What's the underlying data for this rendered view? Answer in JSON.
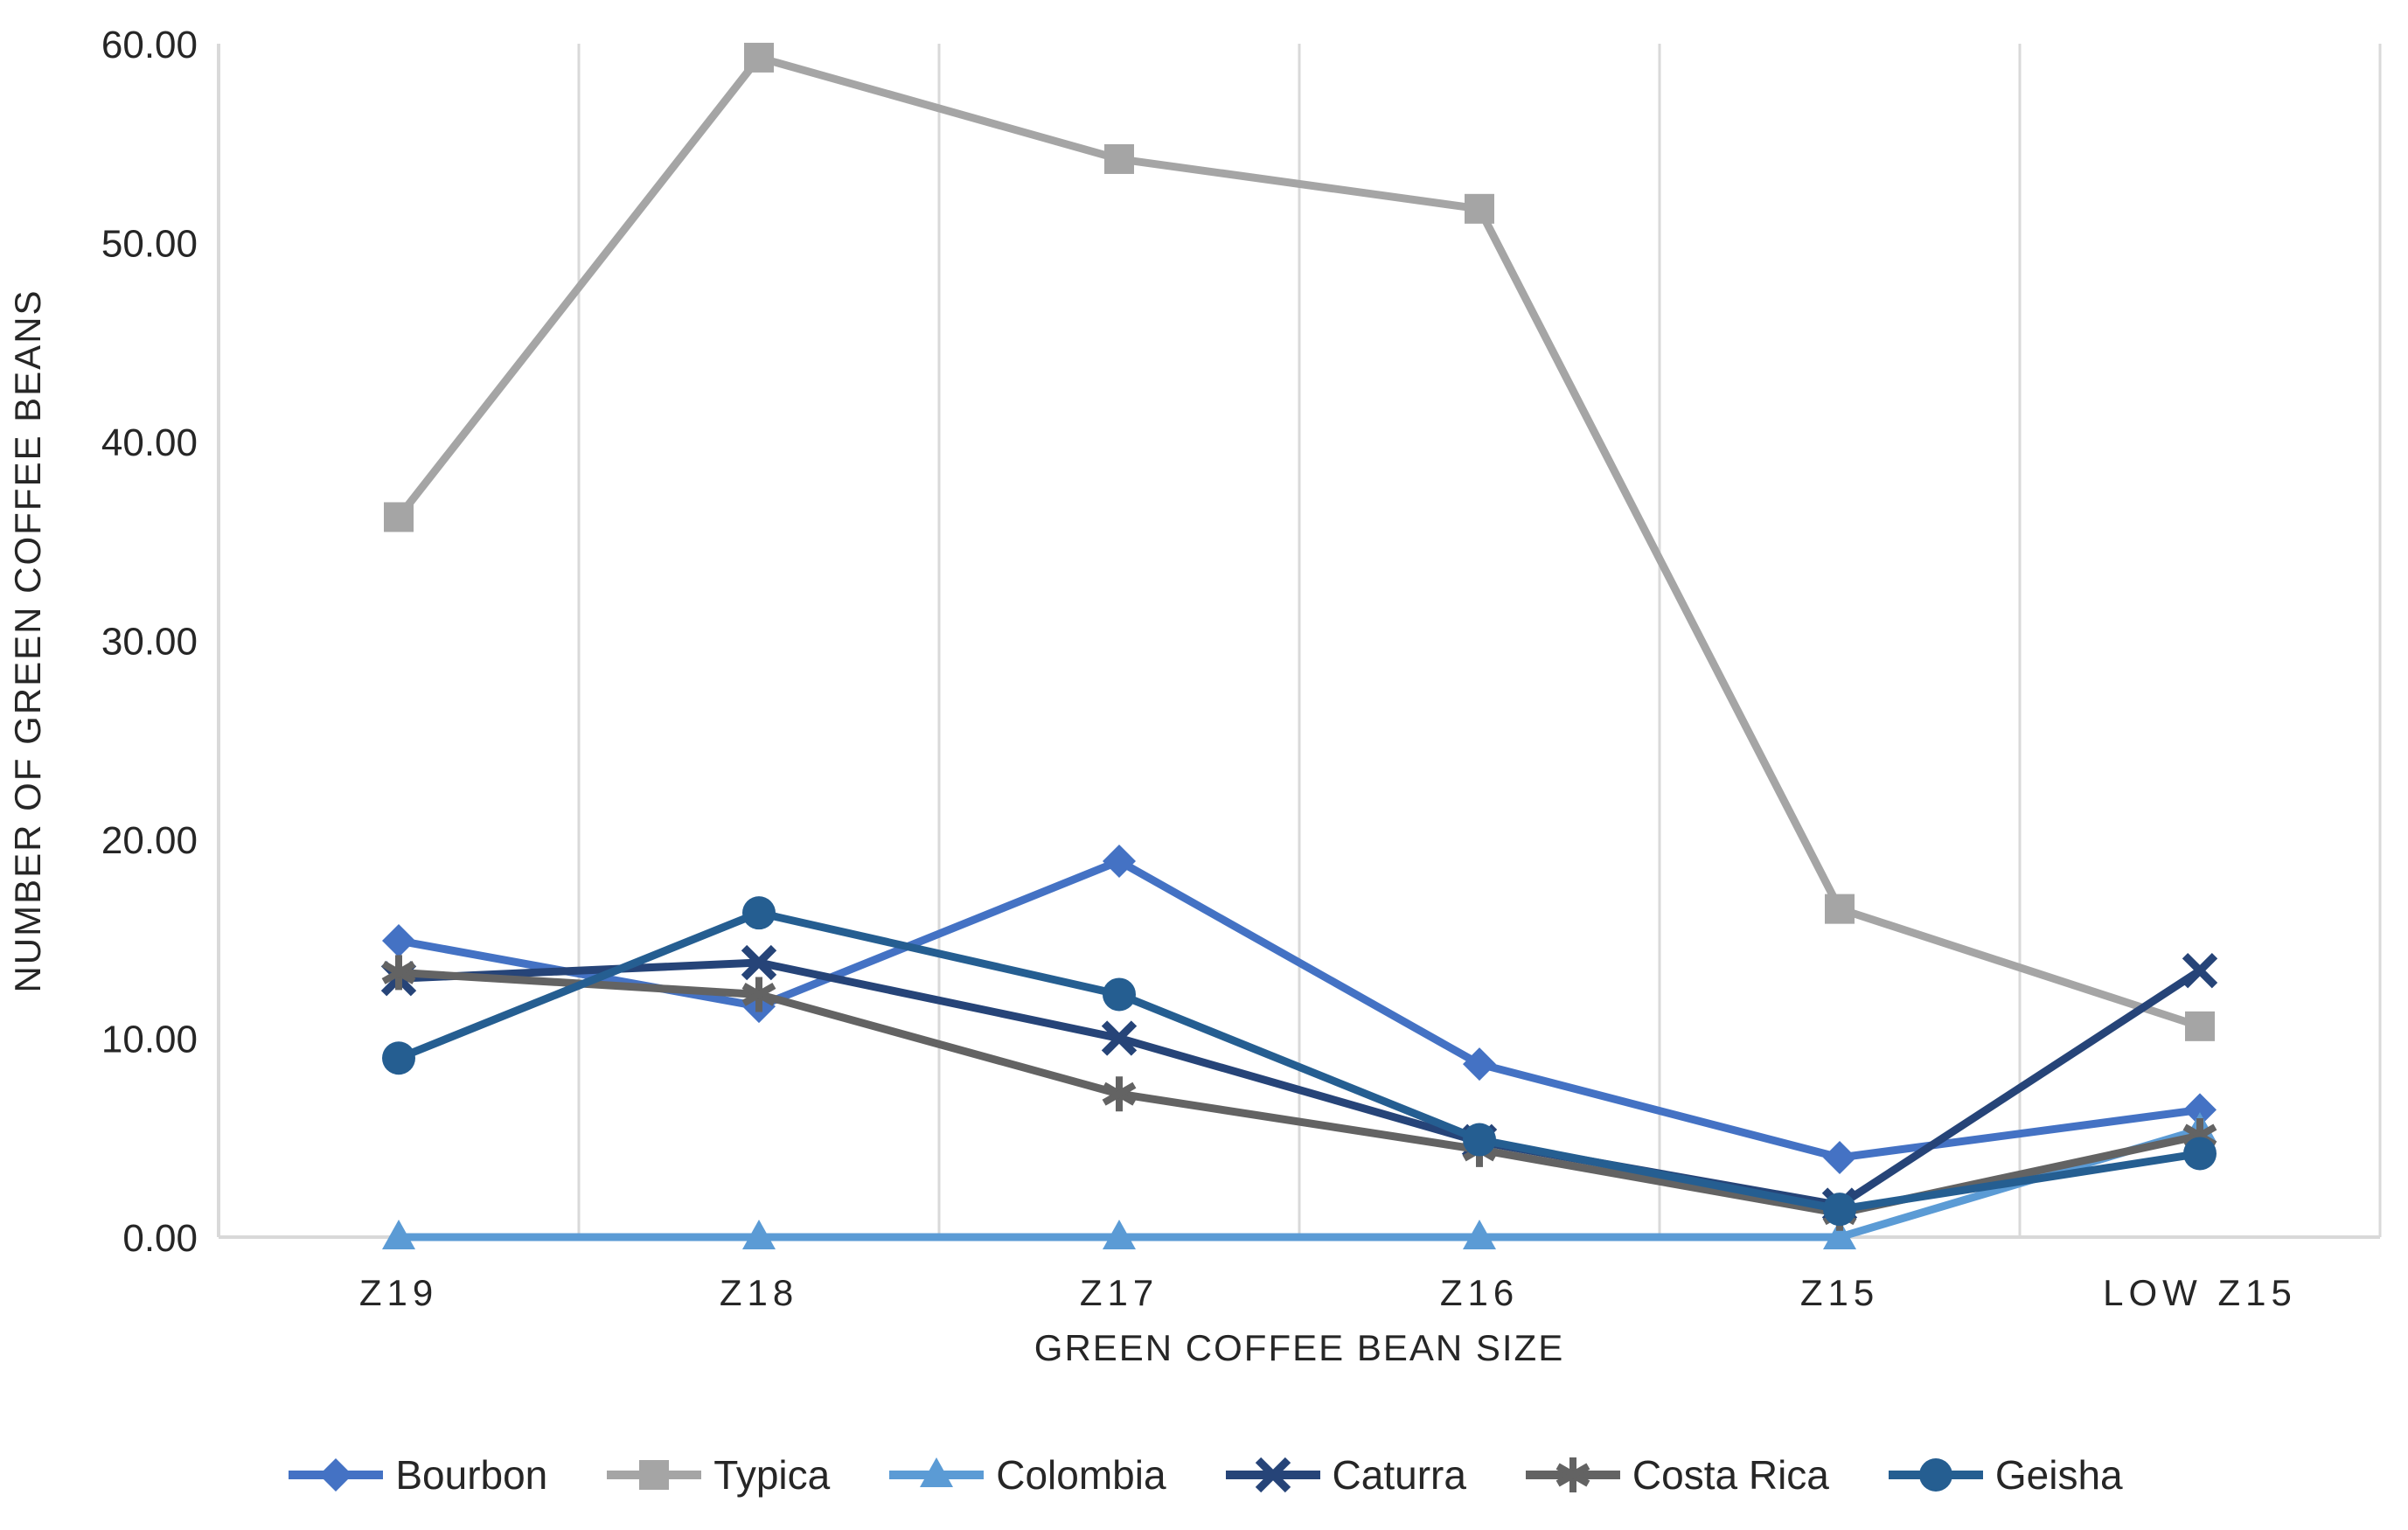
{
  "chart_data": {
    "type": "line",
    "title": "",
    "xlabel": "GREEN COFFEE BEAN SIZE",
    "ylabel": "NUMBER OF GREEN COFFEE BEANS",
    "categories": [
      "Z19",
      "Z18",
      "Z17",
      "Z16",
      "Z15",
      "LOW Z15"
    ],
    "ylim": [
      0,
      60
    ],
    "ytick_labels": [
      "0.00",
      "10.00",
      "20.00",
      "30.00",
      "40.00",
      "50.00",
      "60.00"
    ],
    "grid": "vertical-only",
    "legend_position": "bottom",
    "series": [
      {
        "name": "Bourbon",
        "color": "#4472C4",
        "marker": "diamond",
        "values": [
          14.9,
          11.6,
          18.9,
          8.7,
          4.0,
          6.4
        ]
      },
      {
        "name": "Typica",
        "color": "#A5A5A5",
        "marker": "square",
        "values": [
          36.2,
          59.3,
          54.2,
          51.7,
          16.5,
          10.6
        ]
      },
      {
        "name": "Colombia",
        "color": "#5B9BD5",
        "marker": "triangle",
        "values": [
          0.0,
          0.0,
          0.0,
          0.0,
          0.0,
          5.4
        ]
      },
      {
        "name": "Caturra",
        "color": "#264478",
        "marker": "x",
        "values": [
          13.0,
          13.8,
          10.0,
          4.8,
          1.6,
          13.4
        ]
      },
      {
        "name": "Costa Rica",
        "color": "#636363",
        "marker": "asterisk",
        "values": [
          13.3,
          12.2,
          7.2,
          4.4,
          1.2,
          5.1
        ]
      },
      {
        "name": "Geisha",
        "color": "#255E91",
        "marker": "circle",
        "values": [
          9.0,
          16.3,
          12.2,
          4.9,
          1.4,
          4.2
        ]
      }
    ],
    "colors": {
      "gridline": "#D9D9D9",
      "axis_line": "#D9D9D9",
      "tick_label": "#262626",
      "axis_title": "#262626",
      "legend_text": "#262626",
      "background": "#FFFFFF"
    }
  }
}
